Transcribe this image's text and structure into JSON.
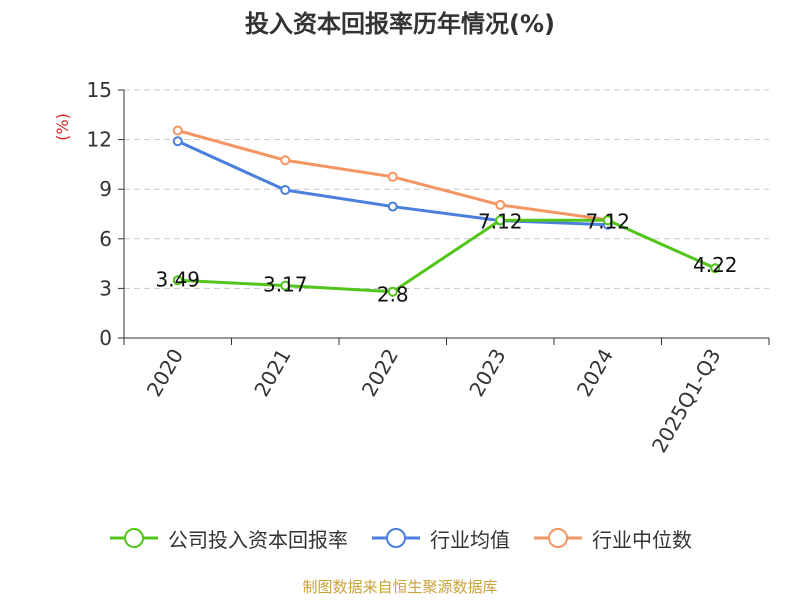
{
  "chart_data": {
    "type": "line",
    "title": "投入资本回报率历年情况(%)",
    "ylabel": "(%)",
    "xlabel": "",
    "ylim": [
      0,
      15
    ],
    "yticks": [
      0,
      3,
      6,
      9,
      12,
      15
    ],
    "categories": [
      "2020",
      "2021",
      "2022",
      "2023",
      "2024",
      "2025Q1-Q3"
    ],
    "grid": true,
    "legend_position": "bottom",
    "series": [
      {
        "name": "公司投入资本回报率",
        "color": "#52c41a",
        "values": [
          3.49,
          3.17,
          2.8,
          7.12,
          7.12,
          4.22
        ],
        "labels": [
          "3.49",
          "3.17",
          "2.8",
          "7.12",
          "7.12",
          "4.22"
        ]
      },
      {
        "name": "行业均值",
        "color": "#4a7fdd",
        "values": [
          11.9,
          8.95,
          7.95,
          7.1,
          6.85,
          null
        ]
      },
      {
        "name": "行业中位数",
        "color": "#f59564",
        "values": [
          12.55,
          10.75,
          9.75,
          8.05,
          7.15,
          null
        ]
      }
    ]
  },
  "footer": {
    "source": "制图数据来自恒生聚源数据库"
  }
}
